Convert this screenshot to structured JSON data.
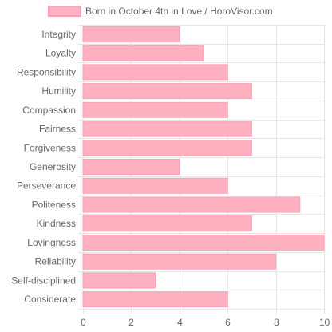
{
  "chart_data": {
    "type": "bar",
    "orientation": "horizontal",
    "title": "",
    "xlabel": "",
    "ylabel": "",
    "categories": [
      "Integrity",
      "Loyalty",
      "Responsibility",
      "Humility",
      "Compassion",
      "Fairness",
      "Forgiveness",
      "Generosity",
      "Perseverance",
      "Politeness",
      "Kindness",
      "Lovingness",
      "Reliability",
      "Self-disciplined",
      "Considerate"
    ],
    "series": [
      {
        "name": "Born in October 4th in Love / HoroVisor.com",
        "values": [
          4,
          5,
          6,
          7,
          6,
          7,
          7,
          4,
          6,
          9,
          7,
          10,
          8,
          3,
          6
        ]
      }
    ],
    "xlim": [
      0,
      10
    ],
    "xticks": [
      0,
      2,
      4,
      6,
      8,
      10
    ],
    "grid": true,
    "legend_position": "top",
    "colors": {
      "bar_fill": "#ffb1c1",
      "bar_stroke": "#ff9fb4",
      "grid": "#e6e6e6",
      "text": "#666666"
    }
  }
}
